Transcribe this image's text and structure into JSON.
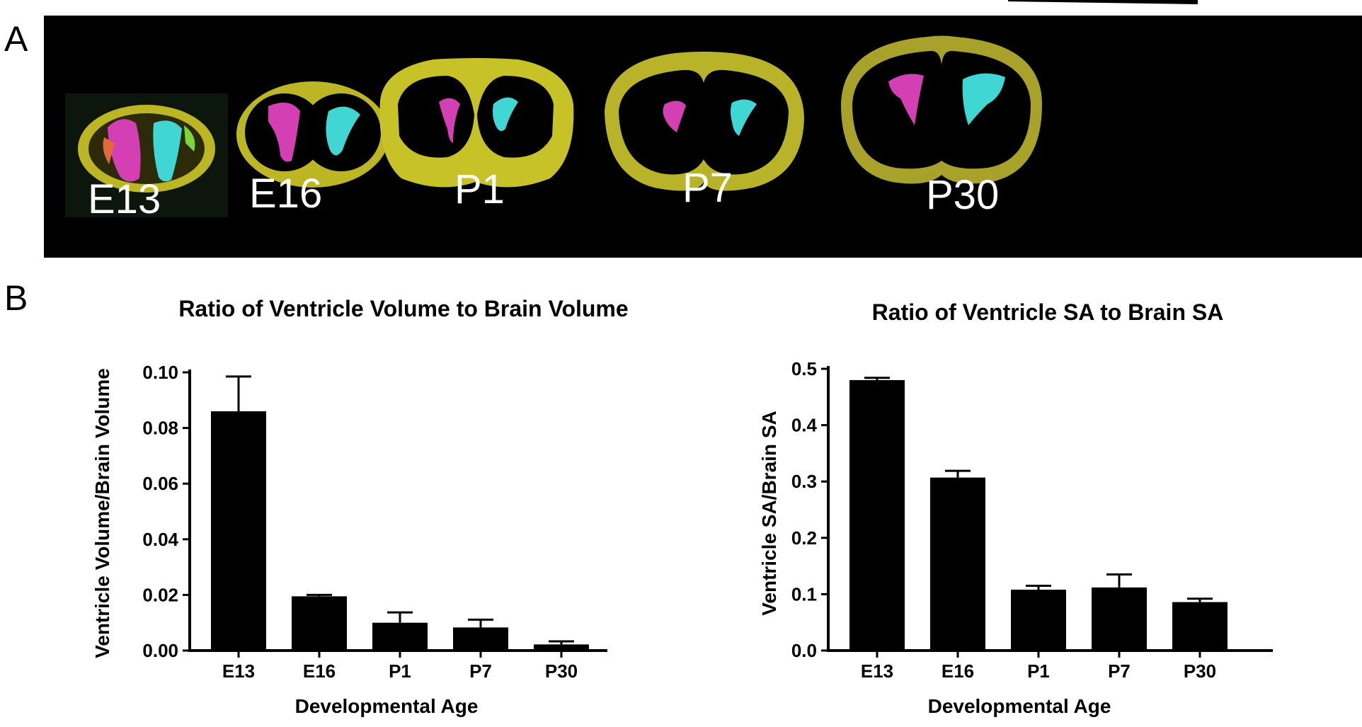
{
  "panels": {
    "a_label": "A",
    "b_label": "B"
  },
  "brain_images": [
    {
      "label": "E13"
    },
    {
      "label": "E16"
    },
    {
      "label": "P1"
    },
    {
      "label": "P7"
    },
    {
      "label": "P30"
    }
  ],
  "colors": {
    "brain_surface": "#c8c229",
    "left_ventricle": "#d43fb4",
    "right_ventricle": "#3fd6d4",
    "bar_fill": "#000000",
    "background_strip": "#000000"
  },
  "chart_data": [
    {
      "type": "bar",
      "title": "Ratio of Ventricle Volume to Brain Volume",
      "xlabel": "Developmental Age",
      "ylabel": "Ventricle Volume/Brain Volume",
      "categories": [
        "E13",
        "E16",
        "P1",
        "P7",
        "P30"
      ],
      "values": [
        0.086,
        0.0195,
        0.01,
        0.0083,
        0.0022
      ],
      "errors": [
        0.0125,
        0.0005,
        0.0037,
        0.0028,
        0.0011
      ],
      "ylim": [
        0,
        0.1
      ],
      "yticks": [
        "0.00",
        "0.02",
        "0.04",
        "0.06",
        "0.08",
        "0.10"
      ],
      "ytick_values": [
        0,
        0.02,
        0.04,
        0.06,
        0.08,
        0.1
      ],
      "grid": false,
      "legend": "none"
    },
    {
      "type": "bar",
      "title": "Ratio of Ventricle SA to Brain SA",
      "xlabel": "Developmental Age",
      "ylabel": "Ventricle SA/Brain SA",
      "categories": [
        "E13",
        "E16",
        "P1",
        "P7",
        "P30"
      ],
      "values": [
        0.48,
        0.307,
        0.108,
        0.112,
        0.086
      ],
      "errors": [
        0.004,
        0.012,
        0.007,
        0.023,
        0.006
      ],
      "ylim": [
        0,
        0.5
      ],
      "yticks": [
        "0.0",
        "0.1",
        "0.2",
        "0.3",
        "0.4",
        "0.5"
      ],
      "ytick_values": [
        0,
        0.1,
        0.2,
        0.3,
        0.4,
        0.5
      ],
      "grid": false,
      "legend": "none"
    }
  ]
}
